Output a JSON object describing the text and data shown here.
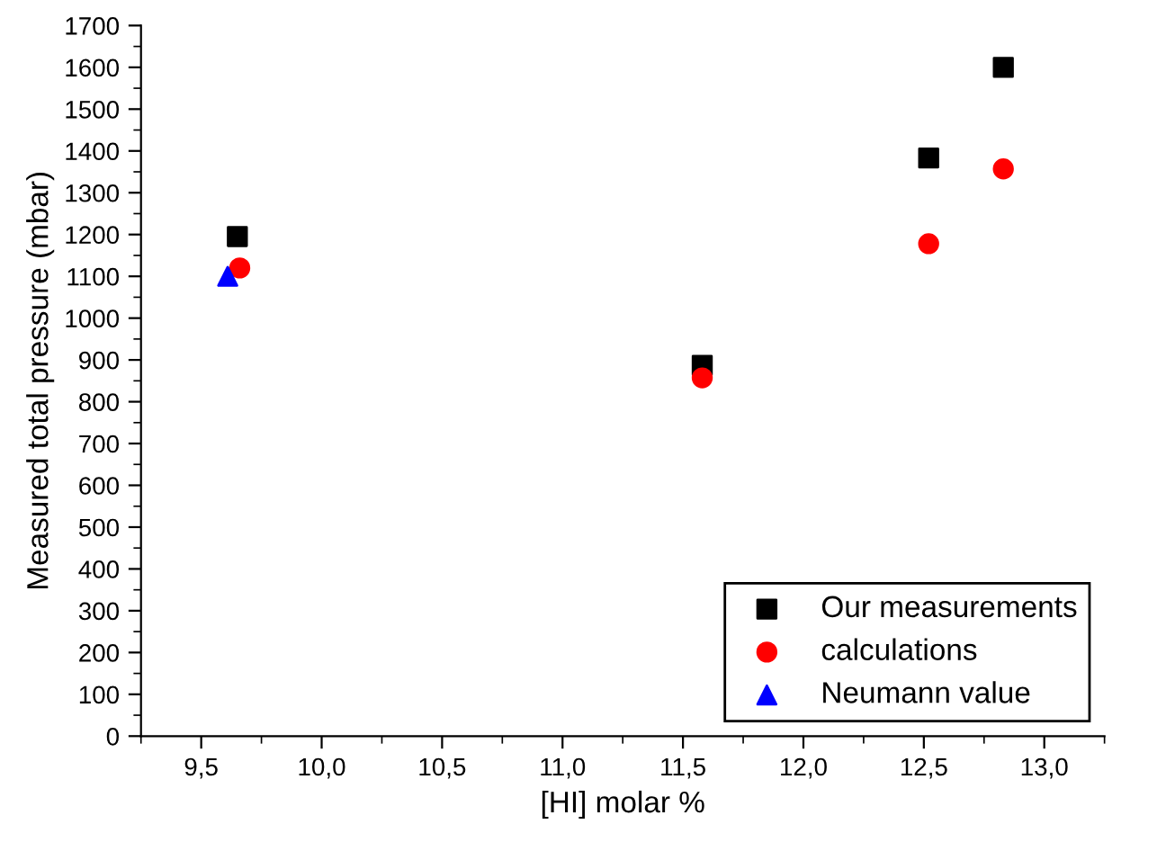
{
  "chart_data": {
    "type": "scatter",
    "xlabel": "[HI] molar %",
    "ylabel": "Measured total pressure (mbar)",
    "xlim": [
      9.25,
      13.25
    ],
    "ylim": [
      0,
      1700
    ],
    "xticks": [
      {
        "value": 9.5,
        "label": "9,5"
      },
      {
        "value": 10.0,
        "label": "10,0"
      },
      {
        "value": 10.5,
        "label": "10,5"
      },
      {
        "value": 11.0,
        "label": "11,0"
      },
      {
        "value": 11.5,
        "label": "11,5"
      },
      {
        "value": 12.0,
        "label": "12,0"
      },
      {
        "value": 12.5,
        "label": "12,5"
      },
      {
        "value": 13.0,
        "label": "13,0"
      }
    ],
    "yticks": [
      0,
      100,
      200,
      300,
      400,
      500,
      600,
      700,
      800,
      900,
      1000,
      1100,
      1200,
      1300,
      1400,
      1500,
      1600,
      1700
    ],
    "legend": "bottom right",
    "grid": false,
    "series": [
      {
        "name": "Our measurements",
        "color": "#000000",
        "marker": "square",
        "x": [
          9.65,
          11.58,
          12.52,
          12.83
        ],
        "values": [
          1195,
          887,
          1383,
          1600
        ]
      },
      {
        "name": "calculations",
        "color": "#ff0000",
        "marker": "circle",
        "x": [
          9.66,
          11.58,
          12.52,
          12.83
        ],
        "values": [
          1120,
          857,
          1178,
          1357
        ]
      },
      {
        "name": "Neumann value",
        "color": "#0000ff",
        "marker": "triangle",
        "x": [
          9.61
        ],
        "values": [
          1100
        ]
      }
    ]
  }
}
